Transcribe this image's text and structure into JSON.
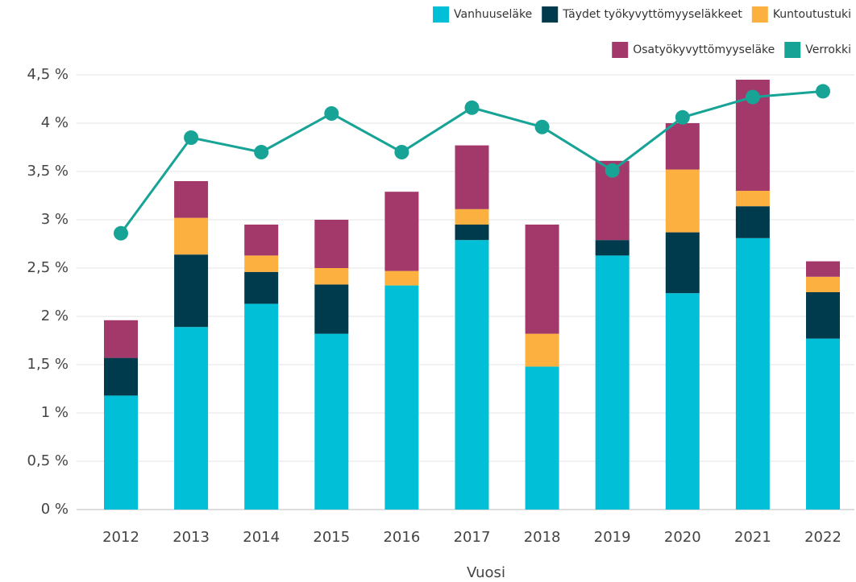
{
  "chart_data": {
    "type": "bar",
    "stacked": true,
    "x_label": "Vuosi",
    "categories": [
      "2012",
      "2013",
      "2014",
      "2015",
      "2016",
      "2017",
      "2018",
      "2019",
      "2020",
      "2021",
      "2022"
    ],
    "series": [
      {
        "name": "Vanhuuseläke",
        "color": "#00bfd6",
        "values": [
          1.18,
          1.89,
          2.13,
          1.82,
          2.32,
          2.79,
          1.48,
          2.63,
          2.24,
          2.81,
          1.77
        ]
      },
      {
        "name": "Täydet työkyvyttömyyseläkkeet",
        "color": "#003a4d",
        "values": [
          0.39,
          0.75,
          0.33,
          0.51,
          0,
          0.16,
          0,
          0.16,
          0.63,
          0.33,
          0.48
        ]
      },
      {
        "name": "Kuntoutustuki",
        "color": "#fbb040",
        "values": [
          0,
          0.38,
          0.17,
          0.17,
          0.15,
          0.16,
          0.34,
          0,
          0.65,
          0.16,
          0.16
        ]
      },
      {
        "name": "Osatyökyvyttömyyseläke",
        "color": "#a3396a",
        "values": [
          0.39,
          0.38,
          0.32,
          0.5,
          0.82,
          0.66,
          1.13,
          0.82,
          0.48,
          1.15,
          0.16
        ]
      },
      {
        "name": "Verrokki",
        "color": "#17a396",
        "type": "line",
        "values": [
          2.86,
          3.85,
          3.7,
          4.1,
          3.7,
          4.16,
          3.96,
          3.51,
          4.06,
          4.27,
          4.33
        ]
      }
    ],
    "ylim": [
      0,
      4.5
    ],
    "yticks": [
      {
        "value": 0,
        "label": "0 %"
      },
      {
        "value": 0.5,
        "label": "0,5 %"
      },
      {
        "value": 1,
        "label": "1 %"
      },
      {
        "value": 1.5,
        "label": "1,5 %"
      },
      {
        "value": 2,
        "label": "2 %"
      },
      {
        "value": 2.5,
        "label": "2,5 %"
      },
      {
        "value": 3,
        "label": "3 %"
      },
      {
        "value": 3.5,
        "label": "3,5 %"
      },
      {
        "value": 4,
        "label": "4 %"
      },
      {
        "value": 4.5,
        "label": "4,5 %"
      }
    ],
    "grid": true,
    "legend": "top-right"
  }
}
